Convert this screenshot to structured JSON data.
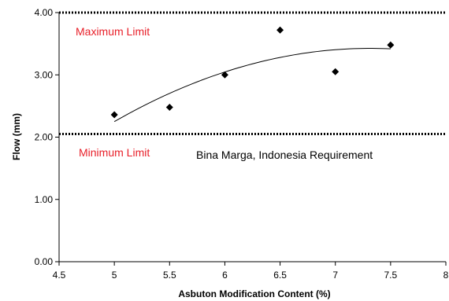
{
  "chart_data": {
    "type": "scatter",
    "xlabel": "Asbuton Modification Content (%)",
    "ylabel": "Flow (mm)",
    "xlim": [
      4.5,
      8
    ],
    "ylim": [
      0,
      4
    ],
    "x_ticks": [
      "4.5",
      "5",
      "5.5",
      "6",
      "6.5",
      "7",
      "7.5",
      "8"
    ],
    "y_ticks": [
      "0.00",
      "1.00",
      "2.00",
      "3.00",
      "4.00"
    ],
    "grid": false,
    "series": [
      {
        "marker": "diamond",
        "color": "#000000",
        "points": [
          {
            "x": 5.0,
            "y": 2.36
          },
          {
            "x": 5.5,
            "y": 2.48
          },
          {
            "x": 6.0,
            "y": 3.0
          },
          {
            "x": 6.5,
            "y": 3.72
          },
          {
            "x": 7.0,
            "y": 3.05
          },
          {
            "x": 7.5,
            "y": 3.48
          }
        ]
      }
    ],
    "trendline": {
      "type": "polynomial",
      "color": "#000000",
      "x_range": [
        5.0,
        7.5
      ],
      "points": [
        {
          "x": 5.0,
          "y": 2.25
        },
        {
          "x": 5.5,
          "y": 2.7
        },
        {
          "x": 6.0,
          "y": 3.05
        },
        {
          "x": 6.5,
          "y": 3.28
        },
        {
          "x": 7.0,
          "y": 3.4
        },
        {
          "x": 7.5,
          "y": 3.42
        }
      ]
    },
    "limit_lines": [
      {
        "y": 4.0,
        "label": "Maximum Limit",
        "style": "dotted",
        "label_color": "#e8202a"
      },
      {
        "y": 2.05,
        "label": "Minimum Limit",
        "style": "dotted",
        "label_color": "#e8202a"
      }
    ],
    "annotations": [
      {
        "text": "Bina Marga, Indonesia Requirement",
        "color": "#000000"
      }
    ]
  }
}
